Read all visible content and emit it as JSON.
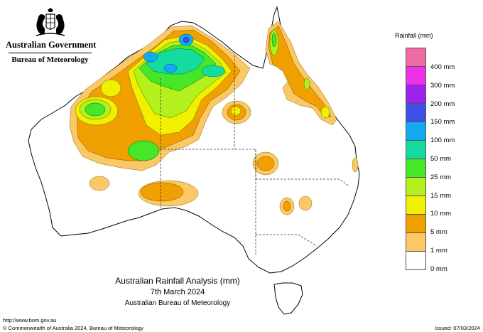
{
  "header": {
    "government": "Australian Government",
    "bureau": "Bureau of Meteorology"
  },
  "map": {
    "title": "Australian Rainfall Analysis (mm)",
    "date": "7th March 2024",
    "agency": "Australian Bureau of Meteorology",
    "base_color": "#ffffff",
    "outline_color": "#000000"
  },
  "legend": {
    "title": "Rainfall (mm)",
    "items": [
      {
        "label": "400 mm",
        "color": "#f06aa4"
      },
      {
        "label": "300 mm",
        "color": "#f030e8"
      },
      {
        "label": "200 mm",
        "color": "#a020f0"
      },
      {
        "label": "150 mm",
        "color": "#3c50e6"
      },
      {
        "label": "100 mm",
        "color": "#14aaf0"
      },
      {
        "label": "50 mm",
        "color": "#14dca0"
      },
      {
        "label": "25 mm",
        "color": "#46e628"
      },
      {
        "label": "15 mm",
        "color": "#b4f01e"
      },
      {
        "label": "10 mm",
        "color": "#f0f000"
      },
      {
        "label": "5 mm",
        "color": "#f0a000"
      },
      {
        "label": "1 mm",
        "color": "#fac864"
      },
      {
        "label": "0 mm",
        "color": "#ffffff"
      }
    ]
  },
  "footer": {
    "url": "http://www.bom.gov.au",
    "copyright": "© Commonwealth of Australia 2024, Bureau of Meteorology",
    "issued": "Issued: 07/03/2024"
  }
}
